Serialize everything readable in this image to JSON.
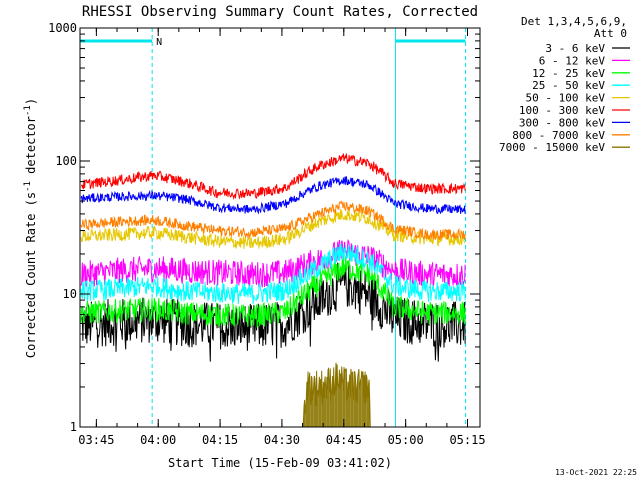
{
  "chart_data": {
    "type": "line",
    "title": "RHESSI Observing Summary Count Rates, Corrected",
    "xlabel": "Start Time (15-Feb-09 03:41:02)",
    "ylabel_main": "Corrected Count Rate (s",
    "ylabel_sup1": "-1",
    "ylabel_mid": " detector",
    "ylabel_sup2": "-1",
    "ylabel_end": ")",
    "x_unit": "minutes since 03:41:02",
    "xlim": [
      0,
      97
    ],
    "ylim": [
      1,
      1000
    ],
    "yscale": "log",
    "x_ticks": [
      "03:45",
      "04:00",
      "04:15",
      "04:30",
      "04:45",
      "05:00",
      "05:15"
    ],
    "x_tick_values": [
      3.97,
      18.97,
      33.97,
      48.97,
      63.97,
      78.97,
      93.97
    ],
    "y_ticks": [
      "1",
      "10",
      "100",
      "1000"
    ],
    "y_tick_values": [
      1,
      10,
      100,
      1000
    ],
    "legend_header": [
      "Det 1,3,4,5,6,9,",
      "Att 0"
    ],
    "legend_placement": "right",
    "night_segments": [
      [
        0,
        17.5
      ],
      [
        76.5,
        93.5
      ]
    ],
    "flag_label": "N",
    "timestamp": "13-Oct-2021 22:25",
    "colors": {
      "axis": "#000000",
      "night": "#00e5ee"
    },
    "series": [
      {
        "name": "3 - 6 keV",
        "color": "#000000",
        "base": 5.8,
        "peak": 12,
        "noise": 0.18,
        "dips": true,
        "x": [
          0,
          10,
          18,
          25,
          33,
          42,
          50,
          58,
          64,
          70,
          76,
          84,
          93.5
        ],
        "y": [
          5.8,
          6.2,
          6.4,
          6.0,
          5.8,
          5.6,
          6.0,
          9.0,
          12,
          10,
          6.5,
          6.0,
          5.8
        ]
      },
      {
        "name": "6 - 12 keV",
        "color": "#ff00ff",
        "base": 14,
        "peak": 21,
        "noise": 0.1,
        "x": [
          0,
          10,
          18,
          25,
          33,
          42,
          50,
          58,
          64,
          70,
          76,
          84,
          93.5
        ],
        "y": [
          14,
          15,
          15.5,
          15,
          14.5,
          14,
          14.5,
          18,
          21,
          19,
          15,
          14,
          14
        ]
      },
      {
        "name": "12 - 25 keV",
        "color": "#00ff00",
        "base": 7.2,
        "peak": 16,
        "noise": 0.09,
        "x": [
          0,
          10,
          18,
          25,
          33,
          42,
          50,
          58,
          64,
          70,
          76,
          84,
          93.5
        ],
        "y": [
          7.2,
          7.5,
          7.7,
          7.2,
          7.0,
          6.8,
          7.3,
          12,
          16,
          14,
          8.0,
          7.2,
          7.2
        ]
      },
      {
        "name": "25 - 50 keV",
        "color": "#00ffff",
        "base": 10.5,
        "peak": 21,
        "noise": 0.08,
        "x": [
          0,
          10,
          18,
          25,
          33,
          42,
          50,
          58,
          64,
          70,
          76,
          84,
          93.5
        ],
        "y": [
          10.5,
          11,
          11.5,
          10.5,
          10.2,
          10,
          10.7,
          16,
          21,
          18,
          11.5,
          10.5,
          10.5
        ]
      },
      {
        "name": "50 - 100 keV",
        "color": "#e6c700",
        "base": 27,
        "peak": 40,
        "noise": 0.05,
        "x": [
          0,
          10,
          18,
          25,
          33,
          42,
          50,
          58,
          64,
          70,
          76,
          84,
          93.5
        ],
        "y": [
          27,
          28,
          29,
          27,
          25,
          24,
          26,
          35,
          40,
          37,
          28,
          26,
          26
        ]
      },
      {
        "name": "100 - 300 keV",
        "color": "#ff0000",
        "base": 66,
        "peak": 105,
        "noise": 0.04,
        "x": [
          0,
          10,
          18,
          25,
          33,
          42,
          50,
          58,
          64,
          70,
          76,
          84,
          93.5
        ],
        "y": [
          66,
          72,
          78,
          70,
          58,
          57,
          63,
          92,
          105,
          96,
          68,
          62,
          62
        ]
      },
      {
        "name": "300 - 800 keV",
        "color": "#0000ff",
        "base": 52,
        "peak": 72,
        "noise": 0.035,
        "x": [
          0,
          10,
          18,
          25,
          33,
          42,
          50,
          58,
          64,
          70,
          76,
          84,
          93.5
        ],
        "y": [
          52,
          54,
          55,
          52,
          45,
          43,
          48,
          65,
          72,
          66,
          48,
          44,
          43
        ]
      },
      {
        "name": "800 - 7000 keV",
        "color": "#ff8000",
        "base": 33,
        "peak": 46,
        "noise": 0.04,
        "x": [
          0,
          10,
          18,
          25,
          33,
          42,
          50,
          58,
          64,
          70,
          76,
          84,
          93.5
        ],
        "y": [
          33,
          35,
          36,
          33,
          30,
          29,
          31,
          40,
          46,
          42,
          31,
          28,
          28
        ]
      },
      {
        "name": "7000 - 15000 keV",
        "color": "#8b7500",
        "x": [
          0,
          54,
          55,
          59,
          61,
          62.5,
          64,
          67,
          70,
          70.5,
          93.5
        ],
        "y": [
          1,
          1,
          2.6,
          2.6,
          2.8,
          3.0,
          2.7,
          2.6,
          2.6,
          1,
          1
        ]
      }
    ]
  }
}
